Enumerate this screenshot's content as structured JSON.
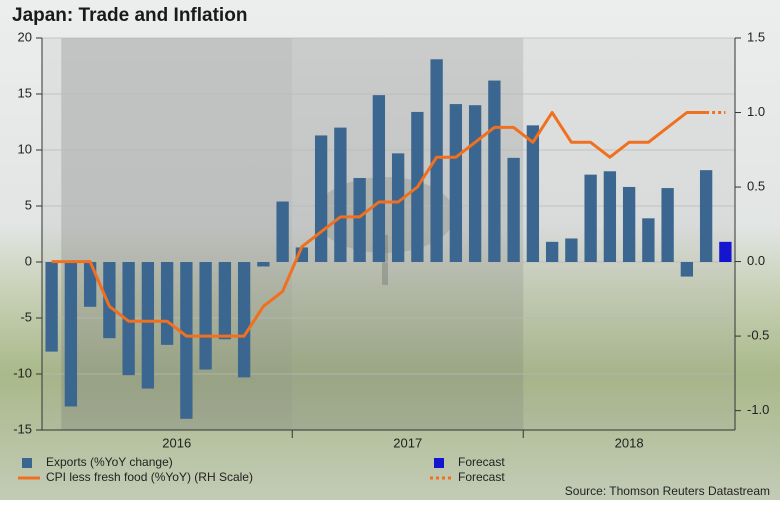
{
  "chart_data": {
    "type": "bar_line",
    "title": "Japan: Trade and Inflation",
    "source": "Source: Thomson Reuters Datastream",
    "categories": [
      null,
      null,
      null,
      null,
      null,
      null,
      null,
      null,
      null,
      null,
      null,
      null,
      null,
      null,
      null,
      null,
      null,
      null,
      null,
      null,
      null,
      null,
      null,
      null,
      null,
      null,
      null,
      null,
      null,
      null,
      null,
      null,
      null,
      null,
      null,
      null
    ],
    "year_labels": [
      "2016",
      "2017",
      "2018"
    ],
    "series": [
      {
        "name": "Exports (%YoY change)",
        "kind": "bar",
        "color": "#3b6690",
        "axis": "y",
        "values": [
          -8.0,
          -12.9,
          -4.0,
          -6.8,
          -10.1,
          -11.3,
          -7.4,
          -14.0,
          -9.6,
          -6.9,
          -10.3,
          -0.4,
          5.4,
          1.3,
          11.3,
          12.0,
          7.5,
          14.9,
          9.7,
          13.4,
          18.1,
          14.1,
          14.0,
          16.2,
          9.3,
          12.2,
          1.8,
          2.1,
          7.8,
          8.1,
          6.7,
          3.9,
          6.6,
          -1.3,
          8.2,
          null
        ]
      },
      {
        "name": "CPI less fresh food (%YoY) (RH Scale)",
        "kind": "line",
        "color": "#f07020",
        "axis": "y2",
        "values": [
          0,
          0,
          0,
          -0.3,
          -0.4,
          -0.4,
          -0.4,
          -0.5,
          -0.5,
          -0.5,
          -0.5,
          -0.3,
          -0.2,
          0.1,
          0.2,
          0.3,
          0.3,
          0.4,
          0.4,
          0.5,
          0.7,
          0.7,
          0.8,
          0.9,
          0.9,
          0.8,
          1.0,
          0.8,
          0.8,
          0.7,
          0.8,
          0.8,
          0.9,
          1.0,
          1.0,
          null
        ]
      },
      {
        "name": "Forecast",
        "kind": "bar",
        "color": "#1515d0",
        "axis": "y",
        "values": [
          null,
          null,
          null,
          null,
          null,
          null,
          null,
          null,
          null,
          null,
          null,
          null,
          null,
          null,
          null,
          null,
          null,
          null,
          null,
          null,
          null,
          null,
          null,
          null,
          null,
          null,
          null,
          null,
          null,
          null,
          null,
          null,
          null,
          null,
          null,
          1.8
        ]
      },
      {
        "name": "Forecast",
        "kind": "line",
        "dashed": true,
        "color": "#f07020",
        "axis": "y2",
        "values": [
          null,
          null,
          null,
          null,
          null,
          null,
          null,
          null,
          null,
          null,
          null,
          null,
          null,
          null,
          null,
          null,
          null,
          null,
          null,
          null,
          null,
          null,
          null,
          null,
          null,
          null,
          null,
          null,
          null,
          null,
          null,
          null,
          null,
          null,
          1.0,
          1.0
        ]
      }
    ],
    "ylim": [
      -15,
      20
    ],
    "yticks": [
      -15,
      -10,
      -5,
      0,
      5,
      10,
      15,
      20
    ],
    "y2lim": [
      -1.13,
      1.5
    ],
    "y2ticks": [
      {
        "value": -1,
        "label": "-1.0"
      },
      -0.5,
      {
        "value": 0,
        "label": "0.0"
      },
      0.5,
      {
        "value": 1,
        "label": "1.0"
      },
      1.5
    ],
    "grid": true
  }
}
